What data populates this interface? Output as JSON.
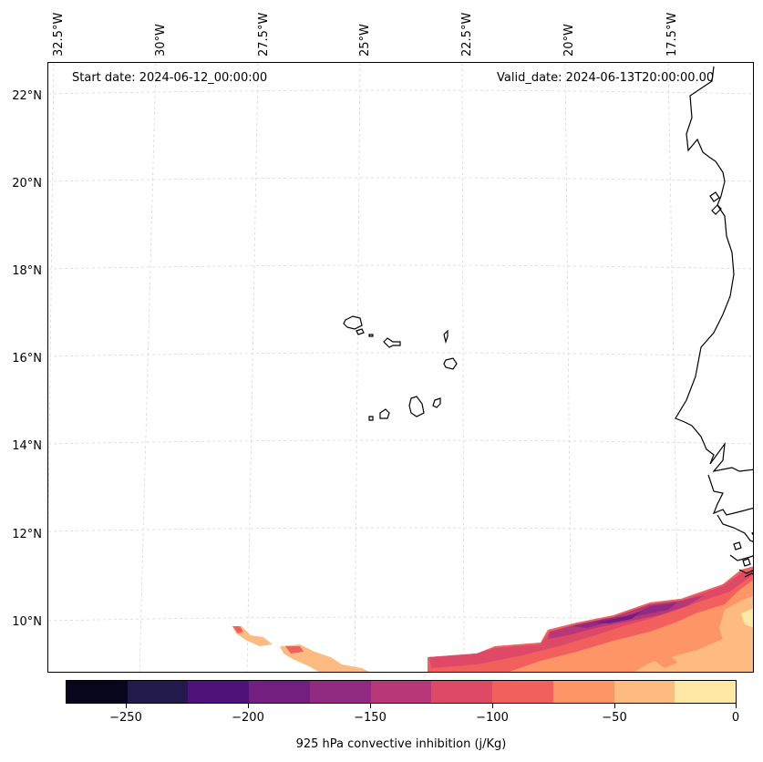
{
  "map": {
    "start_date": "Start date: 2024-06-12_00:00:00",
    "valid_date": "Valid_date: 2024-06-13T20:00:00.00",
    "lon_labels": [
      "32.5°W",
      "30°W",
      "27.5°W",
      "25°W",
      "22.5°W",
      "20°W",
      "17.5°W"
    ],
    "lat_labels": [
      "22°N",
      "20°N",
      "18°N",
      "16°N",
      "14°N",
      "12°N",
      "10°N"
    ],
    "colors": [
      "#07061c",
      "#211a4b",
      "#4f127b",
      "#721f81",
      "#912b81",
      "#b73779",
      "#de4968",
      "#f1605d",
      "#fd9567",
      "#febb81",
      "#fde9a5"
    ]
  },
  "colorbar": {
    "ticks": [
      "−250",
      "−200",
      "−150",
      "−100",
      "−50",
      "0"
    ],
    "label": "925 hPa convective inhibition (j/Kg)"
  }
}
